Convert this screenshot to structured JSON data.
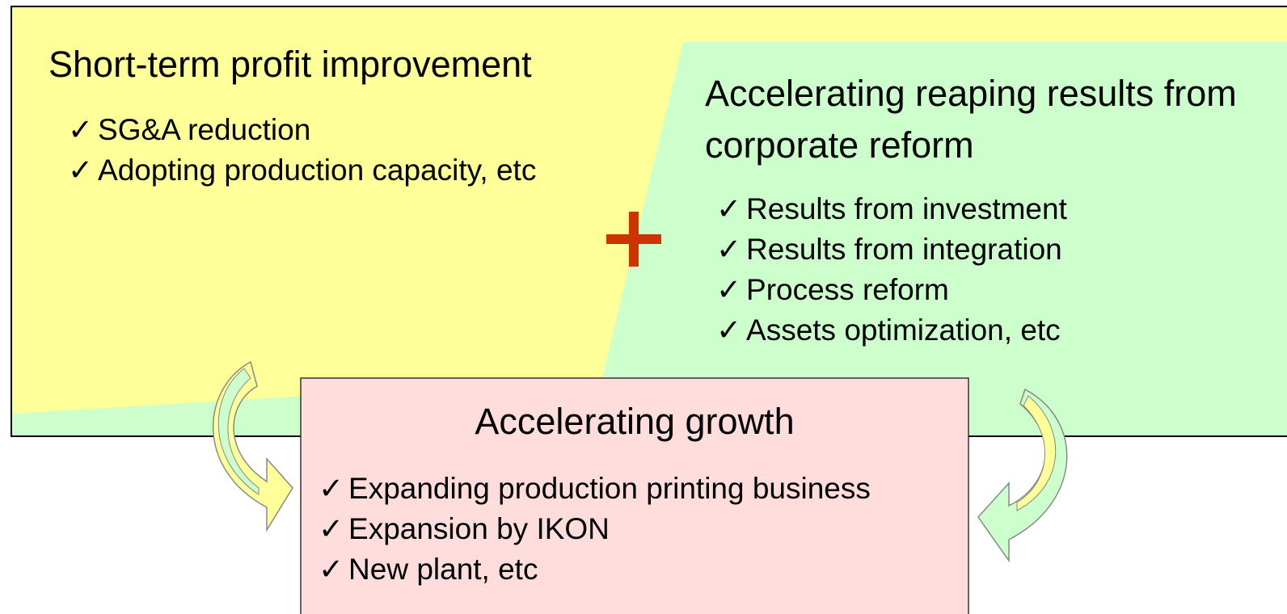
{
  "left_section": {
    "title": "Short-term profit improvement",
    "items": [
      "SG&A reduction",
      "Adopting production capacity, etc"
    ]
  },
  "right_section": {
    "title": "Accelerating reaping results from corporate reform",
    "items": [
      "Results from investment",
      "Results from integration",
      "Process reform",
      "Assets optimization, etc"
    ]
  },
  "bottom_section": {
    "title": "Accelerating growth",
    "items": [
      "Expanding production printing business",
      "Expansion by IKON",
      "New plant, etc"
    ]
  }
}
